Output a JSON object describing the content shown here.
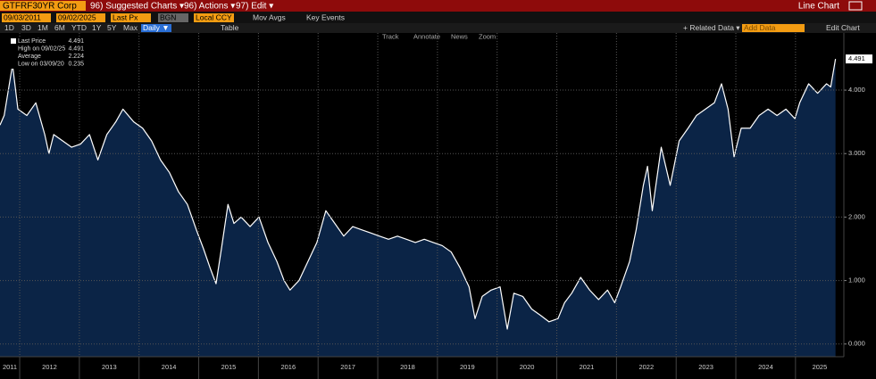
{
  "ui": {
    "ticker": "GTFRF30YR Corp",
    "menu": [
      "96) Suggested Charts ▾",
      "96) Actions ▾",
      "97) Edit ▾"
    ],
    "chart_kind": "Line Chart",
    "start_date": "09/03/2011",
    "end_date": "09/02/2025",
    "field": "Last Px",
    "source": "BGN",
    "currency": "Local CCY",
    "options": [
      "Mov Avgs",
      "Key Events"
    ],
    "ranges": [
      "1D",
      "3D",
      "1M",
      "6M",
      "YTD",
      "1Y",
      "5Y",
      "Max"
    ],
    "frequency": "Daily ▼",
    "table": "Table",
    "related": "+ Related Data ▾",
    "add_data": "Add Data",
    "edit_chart": "Edit Chart",
    "tools": [
      "Track",
      "Annotate",
      "News",
      "Zoom"
    ],
    "stats": [
      {
        "label": "Last Price",
        "value": "4.491"
      },
      {
        "label": "High on 09/02/25",
        "value": "4.491"
      },
      {
        "label": "Average",
        "value": "2.224"
      },
      {
        "label": "Low on 03/09/20",
        "value": "0.235"
      }
    ],
    "last_tag": "4.491"
  },
  "chart_data": {
    "type": "area",
    "x": [
      2011.67,
      2011.74,
      2011.88,
      2011.97,
      2012.12,
      2012.27,
      2012.42,
      2012.49,
      2012.57,
      2012.72,
      2012.87,
      2013.02,
      2013.17,
      2013.31,
      2013.46,
      2013.61,
      2013.73,
      2013.91,
      2014.06,
      2014.21,
      2014.36,
      2014.51,
      2014.66,
      2014.81,
      2014.96,
      2015.08,
      2015.19,
      2015.29,
      2015.38,
      2015.49,
      2015.59,
      2015.71,
      2015.86,
      2016.01,
      2016.16,
      2016.31,
      2016.43,
      2016.53,
      2016.68,
      2016.83,
      2016.98,
      2017.13,
      2017.28,
      2017.43,
      2017.58,
      2017.73,
      2017.88,
      2018.03,
      2018.18,
      2018.33,
      2018.48,
      2018.63,
      2018.78,
      2018.93,
      2019.08,
      2019.23,
      2019.38,
      2019.53,
      2019.63,
      2019.75,
      2019.9,
      2020.05,
      2020.17,
      2020.28,
      2020.43,
      2020.58,
      2020.73,
      2020.87,
      2021.02,
      2021.13,
      2021.25,
      2021.4,
      2021.55,
      2021.7,
      2021.85,
      2021.97,
      2022.07,
      2022.22,
      2022.33,
      2022.45,
      2022.52,
      2022.6,
      2022.75,
      2022.9,
      2023.05,
      2023.2,
      2023.34,
      2023.49,
      2023.64,
      2023.76,
      2023.87,
      2023.97,
      2024.09,
      2024.24,
      2024.39,
      2024.54,
      2024.69,
      2024.84,
      2024.99,
      2025.07,
      2025.22,
      2025.37,
      2025.52,
      2025.59,
      2025.67
    ],
    "series": [
      {
        "name": "GTFRF30YR Corp",
        "color": "#ffffff",
        "fill": "#0b2446",
        "values": [
          3.45,
          3.6,
          4.4,
          3.7,
          3.6,
          3.8,
          3.3,
          3.0,
          3.3,
          3.2,
          3.1,
          3.15,
          3.3,
          2.9,
          3.3,
          3.5,
          3.7,
          3.5,
          3.4,
          3.2,
          2.9,
          2.7,
          2.4,
          2.2,
          1.8,
          1.5,
          1.2,
          0.95,
          1.5,
          2.2,
          1.9,
          2.0,
          1.85,
          2.0,
          1.6,
          1.3,
          1.0,
          0.85,
          1.0,
          1.3,
          1.6,
          2.1,
          1.9,
          1.7,
          1.85,
          1.8,
          1.75,
          1.7,
          1.65,
          1.7,
          1.65,
          1.6,
          1.65,
          1.6,
          1.55,
          1.45,
          1.2,
          0.9,
          0.4,
          0.75,
          0.85,
          0.9,
          0.235,
          0.8,
          0.75,
          0.55,
          0.45,
          0.35,
          0.4,
          0.65,
          0.8,
          1.05,
          0.85,
          0.7,
          0.85,
          0.65,
          0.9,
          1.3,
          1.8,
          2.5,
          2.8,
          2.1,
          3.1,
          2.5,
          3.2,
          3.4,
          3.6,
          3.7,
          3.8,
          4.1,
          3.7,
          2.95,
          3.4,
          3.4,
          3.6,
          3.7,
          3.6,
          3.7,
          3.55,
          3.8,
          4.1,
          3.95,
          4.1,
          4.05,
          4.491
        ]
      }
    ],
    "xlim": [
      2011.67,
      2025.81
    ],
    "xticks": [
      {
        "value": 2011,
        "label": "2011"
      },
      {
        "value": 2012,
        "label": "2012"
      },
      {
        "value": 2013,
        "label": "2013"
      },
      {
        "value": 2014,
        "label": "2014"
      },
      {
        "value": 2015,
        "label": "2015"
      },
      {
        "value": 2016,
        "label": "2016"
      },
      {
        "value": 2017,
        "label": "2017"
      },
      {
        "value": 2018,
        "label": "2018"
      },
      {
        "value": 2019,
        "label": "2019"
      },
      {
        "value": 2020,
        "label": "2020"
      },
      {
        "value": 2021,
        "label": "2021"
      },
      {
        "value": 2022,
        "label": "2022"
      },
      {
        "value": 2023,
        "label": "2023"
      },
      {
        "value": 2024,
        "label": "2024"
      },
      {
        "value": 2025,
        "label": "2025"
      }
    ],
    "ylim": [
      -0.2,
      4.9
    ],
    "yticks": [
      {
        "value": 0,
        "label": "0.000"
      },
      {
        "value": 1,
        "label": "1.000"
      },
      {
        "value": 2,
        "label": "2.000"
      },
      {
        "value": 3,
        "label": "3.000"
      },
      {
        "value": 4,
        "label": "4.000"
      }
    ],
    "grid": true
  }
}
